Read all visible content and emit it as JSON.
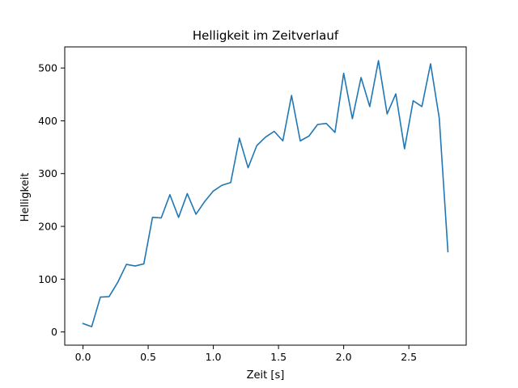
{
  "chart_data": {
    "type": "line",
    "title": "Helligkeit im Zeitverlauf",
    "xlabel": "Zeit [s]",
    "ylabel": "Helligkeit",
    "xlim": [
      -0.14,
      2.94
    ],
    "ylim": [
      -25,
      540
    ],
    "x_ticks": [
      0.0,
      0.5,
      1.0,
      1.5,
      2.0,
      2.5
    ],
    "x_tick_labels": [
      "0.0",
      "0.5",
      "1.0",
      "1.5",
      "2.0",
      "2.5"
    ],
    "y_ticks": [
      0,
      100,
      200,
      300,
      400,
      500
    ],
    "y_tick_labels": [
      "0",
      "100",
      "200",
      "300",
      "400",
      "500"
    ],
    "grid": false,
    "legend": "none",
    "series": [
      {
        "color": "#1f77b4",
        "x": [
          0.0,
          0.0667,
          0.1333,
          0.2,
          0.2667,
          0.3333,
          0.4,
          0.4667,
          0.5333,
          0.6,
          0.6667,
          0.7333,
          0.8,
          0.8667,
          0.9333,
          1.0,
          1.0667,
          1.1333,
          1.2,
          1.2667,
          1.3333,
          1.4,
          1.4667,
          1.5333,
          1.6,
          1.6667,
          1.7333,
          1.8,
          1.8667,
          1.9333,
          2.0,
          2.0667,
          2.1333,
          2.2,
          2.2667,
          2.3333,
          2.4,
          2.4667,
          2.5333,
          2.6,
          2.6667,
          2.7333,
          2.8
        ],
        "y": [
          16,
          10,
          66,
          67,
          94,
          128,
          125,
          129,
          217,
          216,
          260,
          217,
          262,
          223,
          247,
          267,
          278,
          283,
          367,
          311,
          353,
          369,
          380,
          362,
          448,
          362,
          371,
          393,
          395,
          378,
          490,
          404,
          482,
          427,
          514,
          413,
          451,
          347,
          438,
          427,
          508,
          405,
          152
        ]
      }
    ]
  }
}
